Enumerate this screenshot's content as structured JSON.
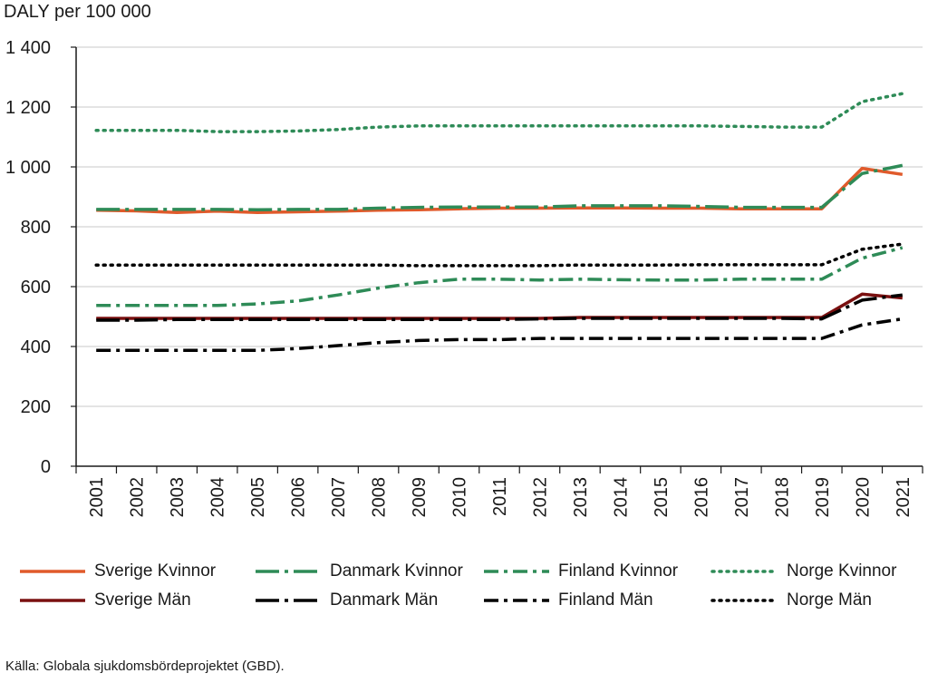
{
  "chart_data": {
    "type": "line",
    "ylabel": "DALY per 100 000",
    "ylim": [
      0,
      1400
    ],
    "yticks": [
      0,
      200,
      400,
      600,
      800,
      1000,
      1200,
      1400
    ],
    "ytick_labels": [
      "0",
      "200",
      "400",
      "600",
      "800",
      "1 000",
      "1 200",
      "1 400"
    ],
    "categories": [
      "2001",
      "2002",
      "2003",
      "2004",
      "2005",
      "2006",
      "2007",
      "2008",
      "2009",
      "2010",
      "2011",
      "2012",
      "2013",
      "2014",
      "2015",
      "2016",
      "2017",
      "2018",
      "2019",
      "2020",
      "2021"
    ],
    "grid": true,
    "legend_position": "bottom",
    "series": [
      {
        "name": "Sverige Kvinnor",
        "color": "#e05a2b",
        "dash": "solid",
        "values": [
          855,
          853,
          848,
          852,
          848,
          850,
          852,
          855,
          857,
          860,
          862,
          862,
          863,
          863,
          862,
          862,
          860,
          860,
          860,
          995,
          975
        ]
      },
      {
        "name": "Danmark Kvinnor",
        "color": "#2e8b57",
        "dash": "dashdot-long",
        "values": [
          858,
          858,
          858,
          858,
          857,
          858,
          858,
          862,
          865,
          866,
          866,
          866,
          870,
          870,
          870,
          868,
          865,
          865,
          865,
          978,
          1005
        ]
      },
      {
        "name": "Finland Kvinnor",
        "color": "#2e8b57",
        "dash": "dashdot",
        "values": [
          537,
          537,
          537,
          537,
          542,
          552,
          572,
          595,
          613,
          625,
          625,
          622,
          625,
          623,
          622,
          622,
          625,
          625,
          625,
          695,
          730
        ]
      },
      {
        "name": "Norge Kvinnor",
        "color": "#2e8b57",
        "dash": "dotted",
        "values": [
          1122,
          1122,
          1122,
          1118,
          1118,
          1120,
          1125,
          1133,
          1137,
          1137,
          1137,
          1137,
          1137,
          1137,
          1137,
          1137,
          1135,
          1133,
          1133,
          1218,
          1245
        ]
      },
      {
        "name": "Sverige Män",
        "color": "#7a1010",
        "dash": "solid",
        "values": [
          494,
          494,
          494,
          494,
          494,
          494,
          494,
          494,
          494,
          494,
          494,
          494,
          497,
          497,
          497,
          497,
          497,
          497,
          497,
          575,
          562
        ]
      },
      {
        "name": "Danmark Män",
        "color": "#000000",
        "dash": "dashdot-long",
        "values": [
          488,
          488,
          490,
          490,
          490,
          490,
          490,
          490,
          490,
          490,
          490,
          492,
          494,
          494,
          494,
          494,
          494,
          494,
          492,
          555,
          572
        ]
      },
      {
        "name": "Finland Män",
        "color": "#000000",
        "dash": "dashdot",
        "values": [
          387,
          387,
          387,
          387,
          387,
          393,
          403,
          413,
          420,
          423,
          423,
          427,
          427,
          427,
          427,
          427,
          427,
          427,
          427,
          472,
          492
        ]
      },
      {
        "name": "Norge Män",
        "color": "#000000",
        "dash": "dotted",
        "values": [
          672,
          672,
          672,
          672,
          672,
          672,
          672,
          672,
          670,
          670,
          670,
          670,
          672,
          672,
          672,
          673,
          673,
          673,
          673,
          725,
          742
        ]
      }
    ]
  },
  "source_text": "Källa: Globala sjukdomsbördeprojektet (GBD)."
}
